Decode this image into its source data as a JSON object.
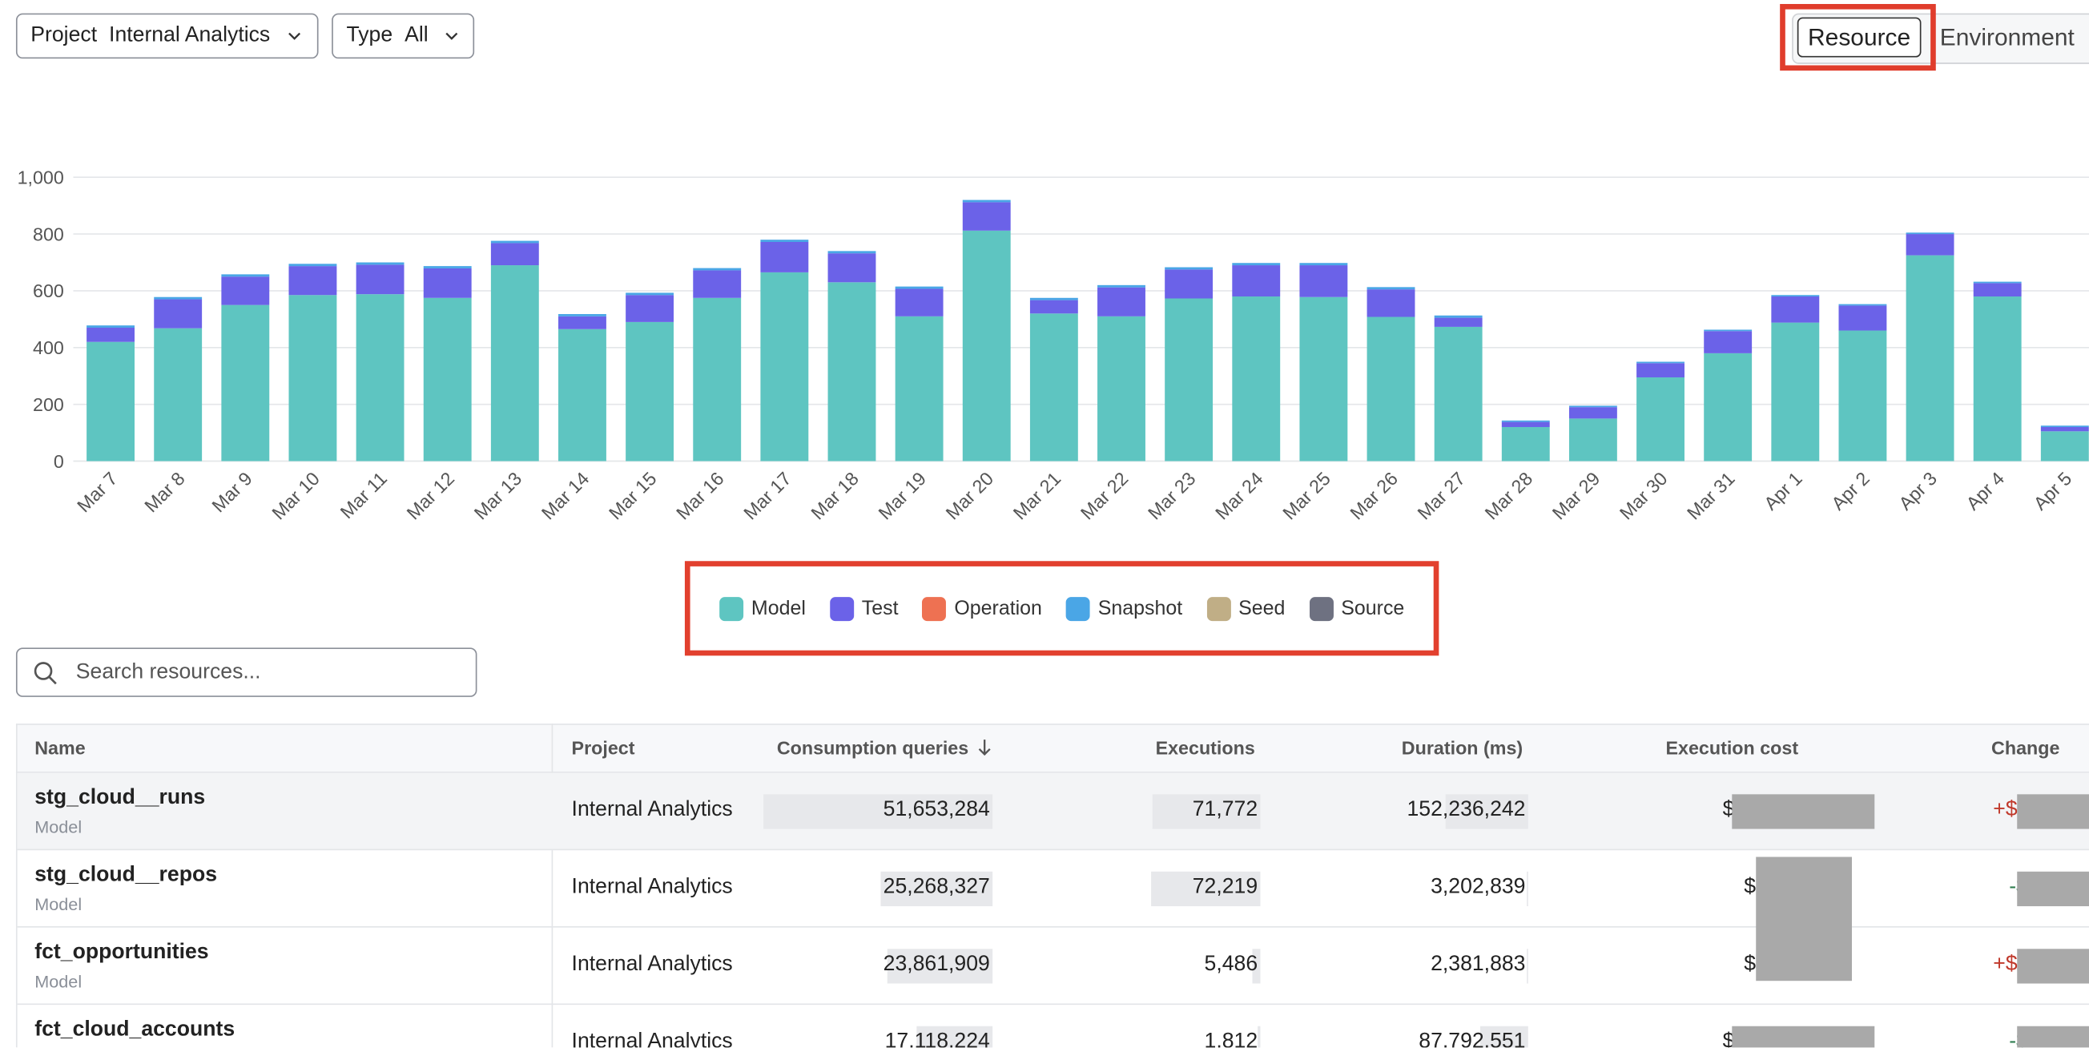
{
  "filters": [
    {
      "label": "Project",
      "value": "Internal Analytics"
    },
    {
      "label": "Type",
      "value": "All"
    }
  ],
  "view_toggle": [
    "Resource",
    "Environment"
  ],
  "chart_data": {
    "type": "bar",
    "stacked": true,
    "grid": true,
    "categories": [
      "Mar 7",
      "Mar 8",
      "Mar 9",
      "Mar 10",
      "Mar 11",
      "Mar 12",
      "Mar 13",
      "Mar 14",
      "Mar 15",
      "Mar 16",
      "Mar 17",
      "Mar 18",
      "Mar 19",
      "Mar 20",
      "Mar 21",
      "Mar 22",
      "Mar 23",
      "Mar 24",
      "Mar 25",
      "Mar 26",
      "Mar 27",
      "Mar 28",
      "Mar 29",
      "Mar 30",
      "Mar 31",
      "Apr 1",
      "Apr 2",
      "Apr 3",
      "Apr 4",
      "Apr 5"
    ],
    "series": [
      {
        "name": "Model",
        "color": "#5ec5c1",
        "values": [
          420,
          468,
          550,
          585,
          588,
          575,
          690,
          465,
          490,
          575,
          665,
          630,
          510,
          812,
          520,
          510,
          573,
          580,
          578,
          508,
          473,
          120,
          150,
          295,
          380,
          488,
          460,
          725,
          580,
          105
        ]
      },
      {
        "name": "Test",
        "color": "#6b62e8",
        "values": [
          50,
          102,
          100,
          102,
          104,
          104,
          78,
          45,
          95,
          97,
          107,
          102,
          97,
          100,
          47,
          102,
          102,
          110,
          112,
          97,
          32,
          18,
          40,
          50,
          78,
          92,
          88,
          75,
          47,
          15
        ]
      },
      {
        "name": "Operation",
        "color": "#ee7152",
        "values": [
          0,
          0,
          0,
          0,
          0,
          0,
          0,
          0,
          0,
          0,
          0,
          0,
          0,
          0,
          0,
          0,
          0,
          0,
          0,
          0,
          0,
          0,
          0,
          0,
          0,
          0,
          0,
          0,
          0,
          0
        ]
      },
      {
        "name": "Snapshot",
        "color": "#4aa6e6",
        "values": [
          8,
          8,
          8,
          8,
          8,
          8,
          8,
          8,
          8,
          8,
          8,
          8,
          8,
          8,
          8,
          8,
          8,
          8,
          8,
          8,
          8,
          5,
          5,
          5,
          5,
          5,
          5,
          5,
          5,
          5
        ]
      },
      {
        "name": "Seed",
        "color": "#c0ae86",
        "values": [
          0,
          0,
          0,
          0,
          0,
          0,
          0,
          0,
          0,
          0,
          0,
          0,
          0,
          0,
          0,
          0,
          0,
          0,
          0,
          0,
          0,
          0,
          0,
          0,
          0,
          0,
          0,
          0,
          0,
          0
        ]
      },
      {
        "name": "Source",
        "color": "#6e7181",
        "values": [
          0,
          0,
          0,
          0,
          0,
          0,
          0,
          0,
          0,
          0,
          0,
          0,
          0,
          0,
          0,
          0,
          0,
          0,
          0,
          0,
          0,
          0,
          0,
          0,
          0,
          0,
          0,
          0,
          0,
          0
        ]
      }
    ],
    "ylim": [
      0,
      1000
    ],
    "yticks": [
      0,
      200,
      400,
      600,
      800,
      {
        "value": 1000,
        "label": "1,000"
      }
    ]
  },
  "search_placeholder": "Search resources...",
  "table": {
    "columns": [
      "Name",
      "Project",
      "Consumption queries",
      "Executions",
      "Duration (ms)",
      "Execution cost",
      "Change"
    ],
    "rows": [
      {
        "name": "stg_cloud__runs",
        "type": "Model",
        "project": "Internal Analytics",
        "consumption_queries": "51,653,284",
        "executions": "71,772",
        "duration_ms": "152,236,242",
        "execution_cost": "$",
        "change": "+$"
      },
      {
        "name": "stg_cloud__repos",
        "type": "Model",
        "project": "Internal Analytics",
        "consumption_queries": "25,268,327",
        "executions": "72,219",
        "duration_ms": "3,202,839",
        "execution_cost": "$",
        "change": "-$"
      },
      {
        "name": "fct_opportunities",
        "type": "Model",
        "project": "Internal Analytics",
        "consumption_queries": "23,861,909",
        "executions": "5,486",
        "duration_ms": "2,381,883",
        "execution_cost": "$",
        "change": "+$"
      },
      {
        "name": "fct_cloud_accounts",
        "project": "Internal Analytics",
        "consumption_queries": "17,118,224",
        "executions": "1,812",
        "duration_ms": "87,792,551",
        "execution_cost": "$",
        "change": "-$"
      }
    ]
  }
}
